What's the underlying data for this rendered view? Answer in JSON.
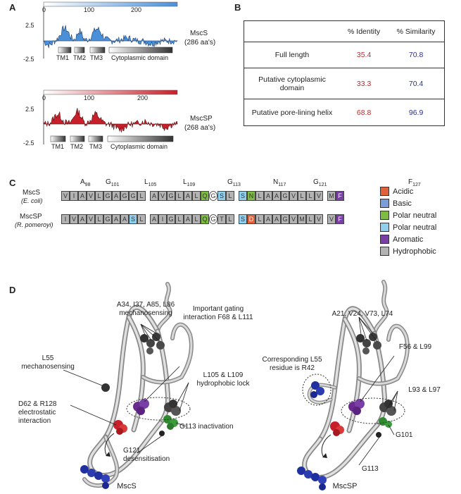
{
  "panels": {
    "a": "A",
    "b": "B",
    "c": "C",
    "d": "D"
  },
  "panel_a": {
    "mscs": {
      "axis_ticks": [
        "0",
        "100",
        "200"
      ],
      "y_ticks": [
        "2.5",
        "-2.5"
      ],
      "name": "MscS",
      "length": "(286 aa's)",
      "domains": [
        "TM1",
        "TM2",
        "TM3",
        "Cytoplasmic domain"
      ]
    },
    "mscsp": {
      "axis_ticks": [
        "0",
        "100",
        "200"
      ],
      "y_ticks": [
        "2.5",
        "-2.5"
      ],
      "name": "MscSP",
      "length": "(268 aa's)",
      "domains": [
        "TM1",
        "TM2",
        "TM3",
        "Cytoplasmic domain"
      ]
    },
    "colors": {
      "mscs": "#4a90d9",
      "mscsp": "#c8202a"
    }
  },
  "panel_b": {
    "headers": [
      "",
      "% Identity",
      "% Similarity"
    ],
    "rows": [
      {
        "label": "Full length",
        "identity": "35.4",
        "similarity": "70.8"
      },
      {
        "label": "Putative cytoplasmic domain",
        "identity": "33.3",
        "similarity": "70.4"
      },
      {
        "label": "Putative pore-lining helix",
        "identity": "68.8",
        "similarity": "96.9"
      }
    ]
  },
  "panel_c": {
    "positions": [
      {
        "aa": "A",
        "num": "98"
      },
      {
        "aa": "G",
        "num": "101"
      },
      {
        "aa": "L",
        "num": "105"
      },
      {
        "aa": "L",
        "num": "109"
      },
      {
        "aa": "G",
        "num": "113"
      },
      {
        "aa": "N",
        "num": "117"
      },
      {
        "aa": "G",
        "num": "121"
      },
      {
        "aa": "F",
        "num": "127"
      }
    ],
    "seq1_name": "MscS",
    "seq1_species": "(E. coli)",
    "seq2_name": "MscSP",
    "seq2_species": "(R. pomeroyi)",
    "seq1": [
      "V",
      "I",
      "A",
      "V",
      "L",
      "G",
      "A",
      "G",
      "G",
      "L",
      "-",
      "A",
      "V",
      "G",
      "L",
      "A",
      "L",
      "Q",
      "G",
      "S",
      "L",
      "-",
      "S",
      "N",
      "L",
      "A",
      "A",
      "G",
      "V",
      "L",
      "L",
      "V",
      "-",
      "M",
      "F"
    ],
    "seq2": [
      "I",
      "V",
      "A",
      "V",
      "L",
      "G",
      "A",
      "A",
      "S",
      "L",
      "-",
      "A",
      "I",
      "G",
      "L",
      "A",
      "L",
      "Q",
      "G",
      "T",
      "L",
      "-",
      "S",
      "D",
      "L",
      "A",
      "A",
      "G",
      "V",
      "M",
      "L",
      "V",
      "-",
      "V",
      "F"
    ],
    "seq1_classes": [
      "h",
      "h",
      "h",
      "h",
      "h",
      "h",
      "h",
      "h",
      "h",
      "h",
      "-",
      "h",
      "h",
      "h",
      "h",
      "h",
      "h",
      "p",
      "g",
      "c",
      "h",
      "-",
      "c",
      "p",
      "h",
      "h",
      "h",
      "h",
      "h",
      "h",
      "h",
      "h",
      "-",
      "h",
      "r"
    ],
    "seq2_classes": [
      "h",
      "h",
      "h",
      "h",
      "h",
      "h",
      "h",
      "h",
      "c",
      "h",
      "-",
      "h",
      "h",
      "h",
      "h",
      "h",
      "h",
      "p",
      "g",
      "h",
      "h",
      "-",
      "c",
      "a",
      "h",
      "h",
      "h",
      "h",
      "h",
      "h",
      "h",
      "h",
      "-",
      "h",
      "r"
    ],
    "legend": [
      {
        "label": "Acidic",
        "color": "#e0623a"
      },
      {
        "label": "Basic",
        "color": "#7a9fd8"
      },
      {
        "label": "Polar neutral",
        "color": "#7dbb42"
      },
      {
        "label": "Polar neutral",
        "color": "#8fd0ee"
      },
      {
        "label": "Aromatic",
        "color": "#7a3fa6"
      },
      {
        "label": "Hydrophobic",
        "color": "#b3b3b3"
      }
    ]
  },
  "panel_d": {
    "left": {
      "title": "MscS",
      "annotations": [
        "A34, I37, A85, L86 mechanosensing",
        "Important gating interaction F68 & L111",
        "L55 mechanosensing",
        "L105 & L109 hydrophobic lock",
        "D62 & R128 electrostatic interaction",
        "G113 inactivation",
        "G121 desensitisation"
      ]
    },
    "right": {
      "title": "MscSP",
      "annotations": [
        "A21, V24, V73, L74",
        "F56 & L99",
        "Corresponding L55 residue is R42",
        "L93 & L97",
        "G101",
        "G113"
      ]
    }
  }
}
